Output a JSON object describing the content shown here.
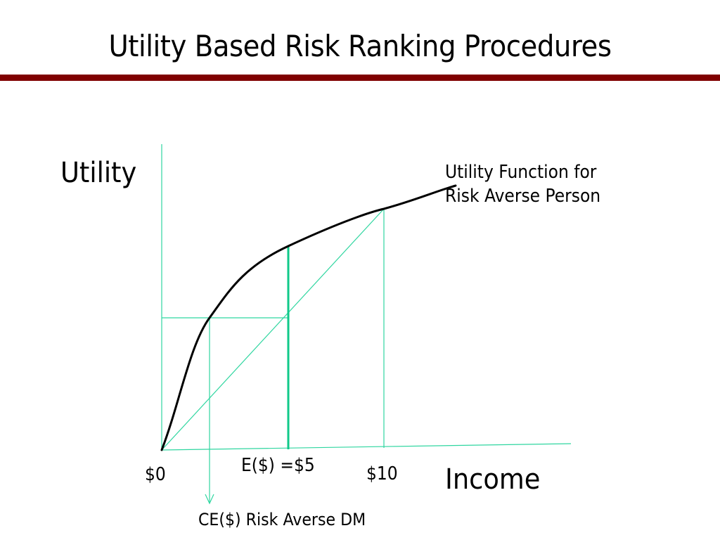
{
  "slide": {
    "title": "Utility Based Risk Ranking Procedures",
    "rule_color": "#800000"
  },
  "diagram": {
    "y_axis_label": "Utility",
    "x_axis_label": "Income",
    "curve_label_line1": "Utility Function for",
    "curve_label_line2": "Risk Averse Person",
    "tick_zero": "$0",
    "tick_ten": "$10",
    "expected_value_label": "E($) =$5",
    "certainty_equivalent_label": "CE($) Risk Averse DM",
    "colors": {
      "guide_lines": "#2fd6a0",
      "expected_value_line": "#10c98a",
      "utility_curve": "#000000"
    }
  }
}
